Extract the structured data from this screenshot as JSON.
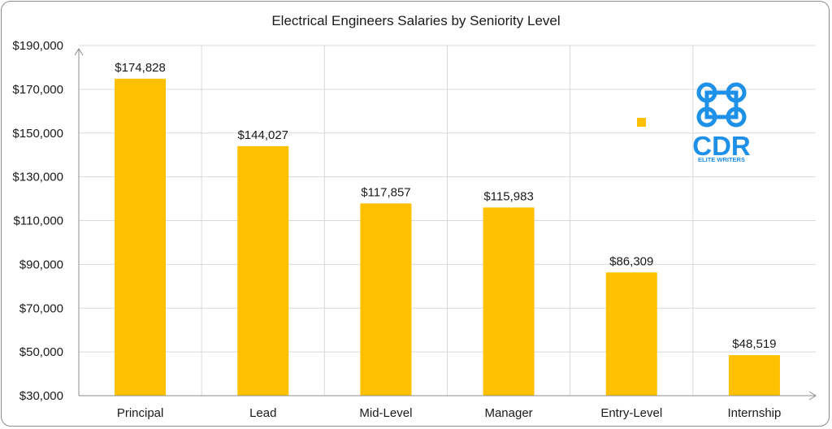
{
  "chart_data": {
    "type": "bar",
    "title": "Electrical Engineers Salaries by Seniority Level",
    "categories": [
      "Principal",
      "Lead",
      "Mid-Level",
      "Manager",
      "Entry-Level",
      "Internship"
    ],
    "values": [
      174828,
      144027,
      117857,
      115983,
      86309,
      48519
    ],
    "data_labels": [
      "$174,828",
      "$144,027",
      "$117,857",
      "$115,983",
      "$86,309",
      "$48,519"
    ],
    "y_ticks": [
      "$30,000",
      "$50,000",
      "$70,000",
      "$90,000",
      "$110,000",
      "$130,000",
      "$150,000",
      "$170,000",
      "$190,000"
    ],
    "ylim": [
      30000,
      190000
    ],
    "ytick_step": 20000,
    "xlabel": "",
    "ylabel": "",
    "grid": true,
    "bar_color": "#FFC000",
    "legend_marker_color": "#FFC000"
  },
  "logo": {
    "text": "CDR",
    "subtext": "ELITE WRITERS",
    "icon": "command-key-icon",
    "color": "#1E90E8"
  }
}
